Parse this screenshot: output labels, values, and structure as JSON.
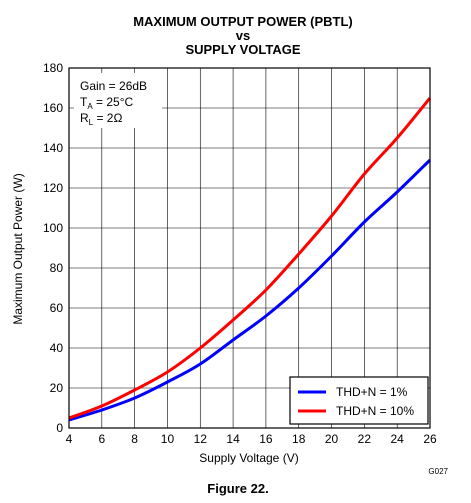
{
  "title_line1": "MAXIMUM OUTPUT POWER (PBTL)",
  "title_line2": "vs",
  "title_line3": "SUPPLY VOLTAGE",
  "figure_caption": "Figure 22.",
  "figure_code": "G027",
  "annotations": {
    "gain": "Gain = 26dB",
    "ta_main": "T",
    "ta_sub": "A",
    "ta_value": " = 25°C",
    "rl_main": "R",
    "rl_sub": "L",
    "rl_value": " = 2Ω"
  },
  "chart_data": {
    "type": "line",
    "xlabel": "Supply Voltage (V)",
    "ylabel": "Maximum Output Power (W)",
    "xlim": [
      4,
      26
    ],
    "ylim": [
      0,
      180
    ],
    "xticks": [
      4,
      6,
      8,
      10,
      12,
      14,
      16,
      18,
      20,
      22,
      24,
      26
    ],
    "yticks": [
      0,
      20,
      40,
      60,
      80,
      100,
      120,
      140,
      160,
      180
    ],
    "grid": true,
    "legend_position": "bottom-right",
    "series": [
      {
        "name": "THD+N = 1%",
        "color": "#0000ff",
        "x": [
          4,
          6,
          8,
          10,
          12,
          14,
          16,
          18,
          20,
          22,
          24,
          26
        ],
        "y": [
          4,
          9,
          15,
          23,
          32,
          44,
          56,
          70,
          86,
          103,
          118,
          134
        ]
      },
      {
        "name": "THD+N = 10%",
        "color": "#ff0000",
        "x": [
          4,
          6,
          8,
          10,
          12,
          14,
          16,
          18,
          20,
          22,
          24,
          26
        ],
        "y": [
          5,
          11,
          19,
          28,
          40,
          54,
          69,
          87,
          106,
          127,
          145,
          165
        ]
      }
    ]
  }
}
